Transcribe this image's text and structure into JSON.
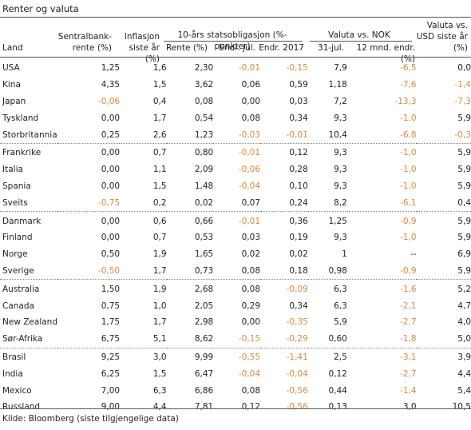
{
  "title": "Renter og valuta",
  "headers": {
    "land": "Land",
    "sentralbank_l1": "Sentralbank-",
    "sentralbank_l2": "rente (%)",
    "inflasjon_l1": "Inflasjon",
    "inflasjon_l2": "siste år (%)",
    "stats_group": "10-års statsobligasjon (%-punkter)",
    "rente": "Rente (%)",
    "endr_jul": "Endr. jul.",
    "endr_2017": "Endr. 2017",
    "valuta_group": "Valuta vs. NOK",
    "jul31": "31-jul.",
    "mnd12": "12 mnd. endr. (%)",
    "usd_l1": "Valuta vs.",
    "usd_l2": "USD siste år",
    "usd_l3": "(%)"
  },
  "groups": [
    [
      {
        "land": "USA",
        "sentral": "1,25",
        "infl": "1,6",
        "rente": "2,30",
        "endr_jul": "-0,01",
        "endr_2017": "-0,15",
        "jul31": "7,9",
        "mnd12": "-6,5",
        "usd": "0,0"
      },
      {
        "land": "Kina",
        "sentral": "4,35",
        "infl": "1,5",
        "rente": "3,62",
        "endr_jul": "0,06",
        "endr_2017": "0,59",
        "jul31": "1,18",
        "mnd12": "-7,6",
        "usd": "-1,4"
      },
      {
        "land": "Japan",
        "sentral": "-0,06",
        "infl": "0,4",
        "rente": "0,08",
        "endr_jul": "0,00",
        "endr_2017": "0,03",
        "jul31": "7,2",
        "mnd12": "-13,3",
        "usd": "-7,3"
      },
      {
        "land": "Tyskland",
        "sentral": "0,00",
        "infl": "1,7",
        "rente": "0,54",
        "endr_jul": "0,08",
        "endr_2017": "0,34",
        "jul31": "9,3",
        "mnd12": "-1,0",
        "usd": "5,9"
      },
      {
        "land": "Storbritannia",
        "sentral": "0,25",
        "infl": "2,6",
        "rente": "1,23",
        "endr_jul": "-0,03",
        "endr_2017": "-0,01",
        "jul31": "10,4",
        "mnd12": "-6,8",
        "usd": "-0,3"
      }
    ],
    [
      {
        "land": "Frankrike",
        "sentral": "0,00",
        "infl": "0,7",
        "rente": "0,80",
        "endr_jul": "-0,01",
        "endr_2017": "0,12",
        "jul31": "9,3",
        "mnd12": "-1,0",
        "usd": "5,9"
      },
      {
        "land": "Italia",
        "sentral": "0,00",
        "infl": "1,1",
        "rente": "2,09",
        "endr_jul": "-0,06",
        "endr_2017": "0,28",
        "jul31": "9,3",
        "mnd12": "-1,0",
        "usd": "5,9"
      },
      {
        "land": "Spania",
        "sentral": "0,00",
        "infl": "1,5",
        "rente": "1,48",
        "endr_jul": "-0,04",
        "endr_2017": "0,10",
        "jul31": "9,3",
        "mnd12": "-1,0",
        "usd": "5,9"
      },
      {
        "land": "Sveits",
        "sentral": "-0,75",
        "infl": "0,2",
        "rente": "0,02",
        "endr_jul": "0,07",
        "endr_2017": "0,24",
        "jul31": "8,2",
        "mnd12": "-6,1",
        "usd": "0,4"
      }
    ],
    [
      {
        "land": "Danmark",
        "sentral": "0,00",
        "infl": "0,6",
        "rente": "0,66",
        "endr_jul": "-0,01",
        "endr_2017": "0,36",
        "jul31": "1,25",
        "mnd12": "-0,9",
        "usd": "5,9"
      },
      {
        "land": "Finland",
        "sentral": "0,00",
        "infl": "0,7",
        "rente": "0,53",
        "endr_jul": "0,03",
        "endr_2017": "0,19",
        "jul31": "9,3",
        "mnd12": "-1,0",
        "usd": "5,9"
      },
      {
        "land": "Norge",
        "sentral": "0,50",
        "infl": "1,9",
        "rente": "1,65",
        "endr_jul": "0,02",
        "endr_2017": "0,02",
        "jul31": "1",
        "mnd12": "--",
        "usd": "6,9"
      },
      {
        "land": "Sverige",
        "sentral": "-0,50",
        "infl": "1,7",
        "rente": "0,73",
        "endr_jul": "0,08",
        "endr_2017": "0,18",
        "jul31": "0,98",
        "mnd12": "-0,9",
        "usd": "5,9"
      }
    ],
    [
      {
        "land": "Australia",
        "sentral": "1,50",
        "infl": "1,9",
        "rente": "2,68",
        "endr_jul": "0,08",
        "endr_2017": "-0,09",
        "jul31": "6,3",
        "mnd12": "-1,6",
        "usd": "5,2"
      },
      {
        "land": "Canada",
        "sentral": "0,75",
        "infl": "1,0",
        "rente": "2,05",
        "endr_jul": "0,29",
        "endr_2017": "0,34",
        "jul31": "6,3",
        "mnd12": "-2,1",
        "usd": "4,7"
      },
      {
        "land": "New Zealand",
        "sentral": "1,75",
        "infl": "1,7",
        "rente": "2,98",
        "endr_jul": "0,00",
        "endr_2017": "-0,35",
        "jul31": "5,9",
        "mnd12": "-2,7",
        "usd": "4,0"
      },
      {
        "land": "Sør-Afrika",
        "sentral": "6,75",
        "infl": "5,1",
        "rente": "8,62",
        "endr_jul": "-0,15",
        "endr_2017": "-0,29",
        "jul31": "0,60",
        "mnd12": "-1,8",
        "usd": "5,0"
      }
    ],
    [
      {
        "land": "Brasil",
        "sentral": "9,25",
        "infl": "3,0",
        "rente": "9,99",
        "endr_jul": "-0,55",
        "endr_2017": "-1,41",
        "jul31": "2,5",
        "mnd12": "-3,1",
        "usd": "3,9"
      },
      {
        "land": "India",
        "sentral": "6,25",
        "infl": "1,5",
        "rente": "6,47",
        "endr_jul": "-0,04",
        "endr_2017": "-0,04",
        "jul31": "0,12",
        "mnd12": "-2,7",
        "usd": "4,4"
      },
      {
        "land": "Mexico",
        "sentral": "7,00",
        "infl": "6,3",
        "rente": "6,86",
        "endr_jul": "0,08",
        "endr_2017": "-0,56",
        "jul31": "0,44",
        "mnd12": "-1,4",
        "usd": "5,4"
      },
      {
        "land": "Russland",
        "sentral": "9,00",
        "infl": "4,4",
        "rente": "7,81",
        "endr_jul": "0,12",
        "endr_2017": "-0,56",
        "jul31": "0,13",
        "mnd12": "3,0",
        "usd": "10,5"
      }
    ]
  ],
  "colors": {
    "negative": "#d98a3a",
    "text": "#222222",
    "rule": "#555555"
  },
  "source": "Kilde: Bloomberg (siste tilgjengelige data)"
}
